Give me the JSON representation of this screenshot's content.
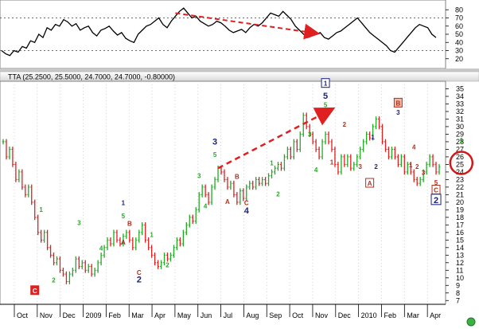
{
  "chart_data": [
    {
      "type": "line",
      "name": "indicator",
      "ylim": [
        10,
        90
      ],
      "yticks": [
        20,
        30,
        40,
        50,
        60,
        70,
        80
      ],
      "grid": "dotted at 30 and 70",
      "values": [
        30,
        26,
        24,
        30,
        28,
        35,
        33,
        42,
        40,
        50,
        46,
        58,
        55,
        62,
        60,
        68,
        65,
        60,
        63,
        55,
        58,
        60,
        52,
        48,
        55,
        57,
        60,
        54,
        49,
        52,
        45,
        42,
        40,
        50,
        55,
        60,
        62,
        66,
        70,
        62,
        58,
        66,
        72,
        78,
        82,
        76,
        70,
        72,
        66,
        63,
        60,
        62,
        66,
        64,
        60,
        55,
        52,
        54,
        56,
        52,
        58,
        62,
        60,
        64,
        70,
        76,
        74,
        72,
        78,
        73,
        68,
        60,
        55,
        50,
        46,
        48,
        50,
        52,
        46,
        44,
        48,
        52,
        54,
        58,
        62,
        66,
        70,
        64,
        58,
        52,
        48,
        44,
        40,
        36,
        30,
        28,
        34,
        40,
        46,
        52,
        58,
        62,
        60,
        58,
        50,
        46
      ],
      "arrow_from_index": 42,
      "arrow_to_index": 72,
      "arrow_color": "#e02020"
    },
    {
      "type": "candlestick",
      "name": "price",
      "legend": "TTA (25.2500, 25.5000, 24.7000, 24.7000, -0.80000)",
      "ylim": [
        6.5,
        36
      ],
      "yticks": [
        7,
        8,
        9,
        10,
        11,
        12,
        13,
        14,
        15,
        16,
        17,
        18,
        19,
        20,
        21,
        22,
        23,
        24,
        25,
        26,
        27,
        28,
        29,
        30,
        31,
        32,
        33,
        34,
        35
      ],
      "xticks": [
        "Oct",
        "Nov",
        "Dec",
        "2009",
        "Feb",
        "Mar",
        "Apr",
        "May",
        "Jun",
        "Jul",
        "Aug",
        "Sep",
        "Oct",
        "Nov",
        "Dec",
        "2010",
        "Feb",
        "Mar",
        "Apr"
      ],
      "close": [
        28,
        26,
        27,
        25,
        23,
        24,
        22,
        21,
        22,
        20,
        18,
        16,
        15,
        16,
        14,
        13,
        12,
        12.5,
        11,
        10.5,
        9.5,
        10.5,
        11,
        12.5,
        11.5,
        12,
        11,
        11.5,
        10.5,
        11,
        12,
        13,
        14,
        15,
        14.5,
        16,
        15,
        14.5,
        15.5,
        16,
        15,
        14,
        15,
        16,
        17,
        15,
        14,
        13,
        12,
        11.5,
        12,
        13,
        12.5,
        13,
        14,
        15,
        14.5,
        16,
        17,
        18,
        17.5,
        19,
        21,
        22,
        21,
        20,
        22,
        23,
        24.5,
        24,
        23,
        22,
        22.5,
        21,
        20,
        21.5,
        20.5,
        22,
        22.5,
        22,
        23,
        22.5,
        23,
        22.5,
        23.5,
        24,
        24.5,
        25,
        24.5,
        26,
        27,
        26,
        28,
        27,
        29,
        31.5,
        30,
        29,
        28,
        27,
        26,
        28,
        29,
        28,
        27,
        25,
        24,
        26,
        25,
        26,
        24.5,
        25,
        26,
        27,
        28,
        29,
        28.5,
        30,
        31,
        30,
        28,
        27,
        26,
        27,
        26,
        25,
        26,
        24,
        25,
        24,
        23,
        22.5,
        23,
        24,
        25,
        26,
        25,
        24,
        24.7
      ],
      "wave_labels": [
        {
          "t": "C",
          "i": 10,
          "p": 8.0,
          "boxed": "fill",
          "color": "#ffffff",
          "bg": "#e02020"
        },
        {
          "t": "1",
          "i": 12,
          "p": 18.7,
          "color": "#22aa22"
        },
        {
          "t": "2",
          "i": 16,
          "p": 9.4,
          "color": "#22aa22"
        },
        {
          "t": "3",
          "i": 24,
          "p": 17.0,
          "color": "#22aa22"
        },
        {
          "t": "4",
          "i": 31,
          "p": 13.6,
          "color": "#22aa22"
        },
        {
          "t": "1",
          "i": 38,
          "p": 19.6,
          "color": "#1a237e"
        },
        {
          "t": "5",
          "i": 38,
          "p": 17.9,
          "color": "#22aa22"
        },
        {
          "t": "B",
          "i": 40,
          "p": 16.9,
          "color": "#b03020"
        },
        {
          "t": "A",
          "i": 38,
          "p": 14.4,
          "color": "#b03020"
        },
        {
          "t": "C",
          "i": 43,
          "p": 10.4,
          "color": "#b03020"
        },
        {
          "t": "2",
          "i": 43,
          "p": 9.4,
          "color": "#1a237e",
          "big": true
        },
        {
          "t": "1",
          "i": 47,
          "p": 15.4,
          "color": "#22aa22"
        },
        {
          "t": "2",
          "i": 52,
          "p": 11.4,
          "color": "#22aa22"
        },
        {
          "t": "3",
          "i": 62,
          "p": 23.2,
          "color": "#22aa22"
        },
        {
          "t": "4",
          "i": 64,
          "p": 19.2,
          "color": "#22aa22"
        },
        {
          "t": "3",
          "i": 67,
          "p": 27.6,
          "color": "#1a237e",
          "big": true
        },
        {
          "t": "5",
          "i": 67,
          "p": 26.0,
          "color": "#22aa22"
        },
        {
          "t": "A",
          "i": 71,
          "p": 19.8,
          "color": "#b03020"
        },
        {
          "t": "B",
          "i": 74,
          "p": 23.1,
          "color": "#b03020"
        },
        {
          "t": "C",
          "i": 77,
          "p": 19.6,
          "color": "#b03020"
        },
        {
          "t": "4",
          "i": 77,
          "p": 18.5,
          "color": "#1a237e",
          "big": true
        },
        {
          "t": "1",
          "i": 85,
          "p": 24.9,
          "color": "#22aa22"
        },
        {
          "t": "2",
          "i": 87,
          "p": 20.8,
          "color": "#22aa22"
        },
        {
          "t": "3",
          "i": 97,
          "p": 28.7,
          "color": "#22aa22"
        },
        {
          "t": "4",
          "i": 99,
          "p": 24.0,
          "color": "#22aa22"
        },
        {
          "t": "1",
          "i": 102,
          "p": 35.4,
          "boxed": "outline",
          "color": "#1a237e"
        },
        {
          "t": "5",
          "i": 102,
          "p": 33.7,
          "color": "#1a237e",
          "big": true
        },
        {
          "t": "5",
          "i": 102,
          "p": 32.6,
          "color": "#22aa22"
        },
        {
          "t": "1",
          "i": 104,
          "p": 25.0,
          "color": "#b03020"
        },
        {
          "t": "2",
          "i": 108,
          "p": 30.0,
          "color": "#b03020"
        },
        {
          "t": "3",
          "i": 113,
          "p": 24.4,
          "color": "#b03020"
        },
        {
          "t": "A",
          "i": 116,
          "p": 22.2,
          "boxed": "outline",
          "color": "#b03020"
        },
        {
          "t": "1",
          "i": 117,
          "p": 28.3,
          "color": "#1a237e"
        },
        {
          "t": "2",
          "i": 118,
          "p": 24.4,
          "color": "#1a237e"
        },
        {
          "t": "B",
          "i": 125,
          "p": 32.8,
          "boxed": "fillpink",
          "color": "#b03020"
        },
        {
          "t": "3",
          "i": 125,
          "p": 31.6,
          "color": "#1a237e"
        },
        {
          "t": "4",
          "i": 130,
          "p": 27.0,
          "color": "#b03020"
        },
        {
          "t": "1",
          "i": 129,
          "p": 24.6,
          "color": "#b03020"
        },
        {
          "t": "2",
          "i": 131,
          "p": 24.4,
          "color": "#b03020"
        },
        {
          "t": "3",
          "i": 133,
          "p": 23.6,
          "color": "#b03020"
        },
        {
          "t": "5",
          "i": 137,
          "p": 22.3,
          "color": "#b03020"
        },
        {
          "t": "C",
          "i": 137,
          "p": 21.3,
          "boxed": "outline",
          "color": "#b03020"
        },
        {
          "t": "2",
          "i": 137,
          "p": 19.9,
          "boxed": "outline",
          "color": "#1a237e",
          "big": true
        },
        {
          "t": "1",
          "i": 145,
          "p": 27.9,
          "color": "#22aa22"
        }
      ],
      "arrow_from": {
        "i": 68,
        "p": 24.5
      },
      "arrow_to": {
        "i": 104,
        "p": 32.3
      },
      "circle_at": {
        "i": 145,
        "p": 25.2
      }
    }
  ]
}
